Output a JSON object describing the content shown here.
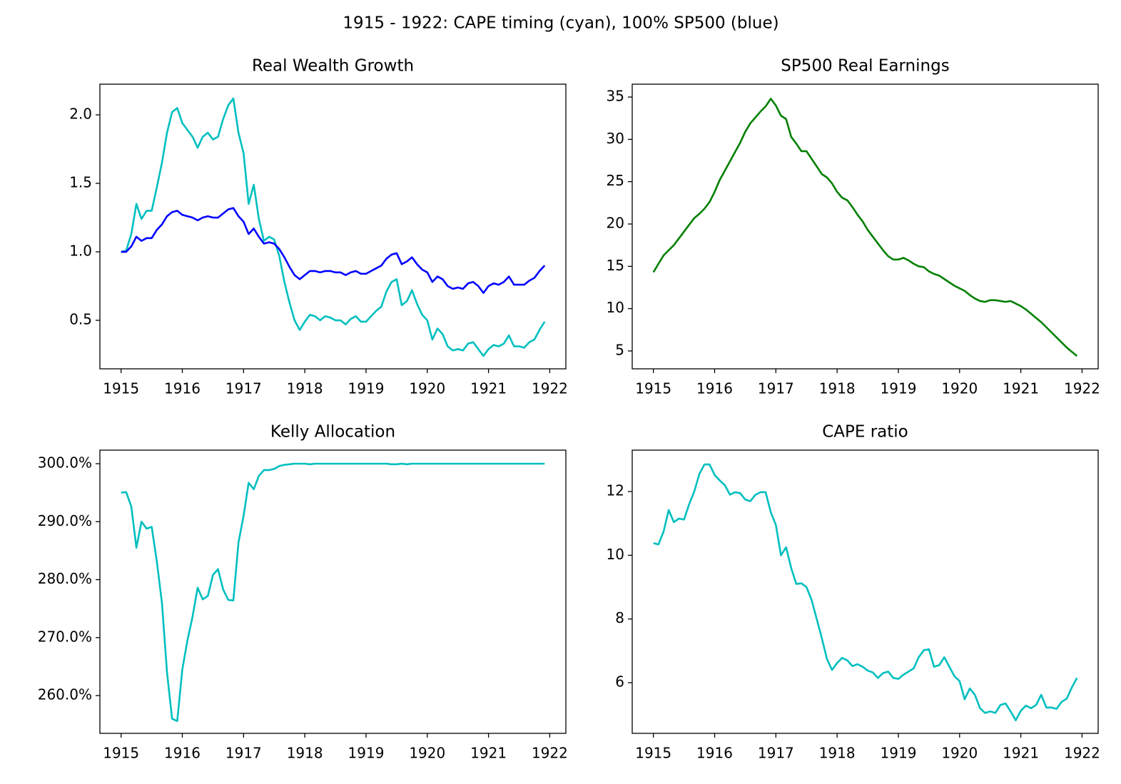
{
  "title": "1915 - 1922: CAPE timing (cyan), 100% SP500 (blue)",
  "chart_data": [
    {
      "type": "line",
      "title": "Real Wealth Growth",
      "x": [
        1915,
        1915.083,
        1915.167,
        1915.25,
        1915.333,
        1915.417,
        1915.5,
        1915.583,
        1915.667,
        1915.75,
        1915.833,
        1915.917,
        1916,
        1916.083,
        1916.167,
        1916.25,
        1916.333,
        1916.417,
        1916.5,
        1916.583,
        1916.667,
        1916.75,
        1916.833,
        1916.917,
        1917,
        1917.083,
        1917.167,
        1917.25,
        1917.333,
        1917.417,
        1917.5,
        1917.583,
        1917.667,
        1917.75,
        1917.833,
        1917.917,
        1918,
        1918.083,
        1918.167,
        1918.25,
        1918.333,
        1918.417,
        1918.5,
        1918.583,
        1918.667,
        1918.75,
        1918.833,
        1918.917,
        1919,
        1919.083,
        1919.167,
        1919.25,
        1919.333,
        1919.417,
        1919.5,
        1919.583,
        1919.667,
        1919.75,
        1919.833,
        1919.917,
        1920,
        1920.083,
        1920.167,
        1920.25,
        1920.333,
        1920.417,
        1920.5,
        1920.583,
        1920.667,
        1920.75,
        1920.833,
        1920.917,
        1921,
        1921.083,
        1921.167,
        1921.25,
        1921.333,
        1921.417,
        1921.5,
        1921.583,
        1921.667,
        1921.75,
        1921.833,
        1921.917
      ],
      "series": [
        {
          "color": "#00bfbf",
          "values": [
            1.0,
            1.01,
            1.13,
            1.35,
            1.24,
            1.3,
            1.3,
            1.47,
            1.65,
            1.87,
            2.02,
            2.05,
            1.94,
            1.89,
            1.84,
            1.76,
            1.84,
            1.87,
            1.82,
            1.84,
            1.97,
            2.07,
            2.12,
            1.87,
            1.72,
            1.35,
            1.49,
            1.24,
            1.08,
            1.11,
            1.09,
            0.97,
            0.78,
            0.63,
            0.5,
            0.43,
            0.49,
            0.54,
            0.53,
            0.5,
            0.53,
            0.52,
            0.5,
            0.5,
            0.47,
            0.51,
            0.53,
            0.49,
            0.49,
            0.53,
            0.57,
            0.6,
            0.71,
            0.78,
            0.8,
            0.61,
            0.64,
            0.72,
            0.62,
            0.54,
            0.5,
            0.36,
            0.44,
            0.4,
            0.31,
            0.28,
            0.29,
            0.28,
            0.33,
            0.34,
            0.29,
            0.24,
            0.29,
            0.32,
            0.31,
            0.33,
            0.39,
            0.31,
            0.31,
            0.3,
            0.34,
            0.36,
            0.43,
            0.49
          ]
        },
        {
          "color": "#0000ff",
          "values": [
            1.0,
            1.0,
            1.04,
            1.11,
            1.08,
            1.1,
            1.1,
            1.16,
            1.2,
            1.26,
            1.29,
            1.3,
            1.27,
            1.26,
            1.25,
            1.23,
            1.25,
            1.26,
            1.25,
            1.25,
            1.28,
            1.31,
            1.32,
            1.26,
            1.22,
            1.13,
            1.17,
            1.11,
            1.06,
            1.07,
            1.06,
            1.02,
            0.96,
            0.89,
            0.83,
            0.8,
            0.83,
            0.86,
            0.86,
            0.85,
            0.86,
            0.86,
            0.85,
            0.85,
            0.83,
            0.85,
            0.86,
            0.84,
            0.84,
            0.86,
            0.88,
            0.9,
            0.95,
            0.98,
            0.99,
            0.91,
            0.93,
            0.96,
            0.91,
            0.87,
            0.85,
            0.78,
            0.82,
            0.8,
            0.75,
            0.73,
            0.74,
            0.73,
            0.77,
            0.78,
            0.75,
            0.7,
            0.75,
            0.77,
            0.76,
            0.78,
            0.82,
            0.76,
            0.76,
            0.76,
            0.79,
            0.81,
            0.86,
            0.9
          ]
        }
      ],
      "xlim": [
        1914.654,
        1922.263
      ],
      "xticks": [
        1915,
        1916,
        1917,
        1918,
        1919,
        1920,
        1921,
        1922
      ],
      "ylim": [
        0.146,
        2.224
      ],
      "yticks": [
        {
          "value": 0.5,
          "label": "0.5"
        },
        {
          "value": 1,
          "label": "1.0"
        },
        {
          "value": 1.5,
          "label": "1.5"
        },
        {
          "value": 2,
          "label": "2.0"
        }
      ]
    },
    {
      "type": "line",
      "title": "SP500 Real Earnings",
      "x": [
        1915,
        1915.083,
        1915.167,
        1915.25,
        1915.333,
        1915.417,
        1915.5,
        1915.583,
        1915.667,
        1915.75,
        1915.833,
        1915.917,
        1916,
        1916.083,
        1916.167,
        1916.25,
        1916.333,
        1916.417,
        1916.5,
        1916.583,
        1916.667,
        1916.75,
        1916.833,
        1916.917,
        1917,
        1917.083,
        1917.167,
        1917.25,
        1917.333,
        1917.417,
        1917.5,
        1917.583,
        1917.667,
        1917.75,
        1917.833,
        1917.917,
        1918,
        1918.083,
        1918.167,
        1918.25,
        1918.333,
        1918.417,
        1918.5,
        1918.583,
        1918.667,
        1918.75,
        1918.833,
        1918.917,
        1919,
        1919.083,
        1919.167,
        1919.25,
        1919.333,
        1919.417,
        1919.5,
        1919.583,
        1919.667,
        1919.75,
        1919.833,
        1919.917,
        1920,
        1920.083,
        1920.167,
        1920.25,
        1920.333,
        1920.417,
        1920.5,
        1920.583,
        1920.667,
        1920.75,
        1920.833,
        1920.917,
        1921,
        1921.083,
        1921.167,
        1921.25,
        1921.333,
        1921.417,
        1921.5,
        1921.583,
        1921.667,
        1921.75,
        1921.833,
        1921.917
      ],
      "series": [
        {
          "color": "#008000",
          "values": [
            14.3,
            15.3,
            16.3,
            16.9,
            17.5,
            18.3,
            19.1,
            19.9,
            20.7,
            21.2,
            21.8,
            22.6,
            23.8,
            25.2,
            26.3,
            27.4,
            28.5,
            29.6,
            30.9,
            31.9,
            32.6,
            33.3,
            33.9,
            34.8,
            34.0,
            32.8,
            32.4,
            30.3,
            29.5,
            28.6,
            28.6,
            27.7,
            26.8,
            25.9,
            25.5,
            24.8,
            23.8,
            23.1,
            22.8,
            22.0,
            21.1,
            20.3,
            19.3,
            18.5,
            17.7,
            16.9,
            16.2,
            15.8,
            15.8,
            16.0,
            15.7,
            15.3,
            15.0,
            14.9,
            14.4,
            14.1,
            13.9,
            13.5,
            13.1,
            12.7,
            12.4,
            12.1,
            11.6,
            11.2,
            10.9,
            10.8,
            11.0,
            11.0,
            10.9,
            10.8,
            10.9,
            10.6,
            10.3,
            9.9,
            9.4,
            8.9,
            8.4,
            7.8,
            7.2,
            6.6,
            6.0,
            5.4,
            4.9,
            4.4
          ]
        }
      ],
      "xlim": [
        1914.654,
        1922.263
      ],
      "xticks": [
        1915,
        1916,
        1917,
        1918,
        1919,
        1920,
        1921,
        1922
      ],
      "ylim": [
        2.89,
        36.52
      ],
      "yticks": [
        5,
        10,
        15,
        20,
        25,
        30,
        35
      ]
    },
    {
      "type": "line",
      "title": "Kelly Allocation",
      "x": [
        1915,
        1915.083,
        1915.167,
        1915.25,
        1915.333,
        1915.417,
        1915.5,
        1915.583,
        1915.667,
        1915.75,
        1915.833,
        1915.917,
        1916,
        1916.083,
        1916.167,
        1916.25,
        1916.333,
        1916.417,
        1916.5,
        1916.583,
        1916.667,
        1916.75,
        1916.833,
        1916.917,
        1917,
        1917.083,
        1917.167,
        1917.25,
        1917.333,
        1917.417,
        1917.5,
        1917.583,
        1917.667,
        1917.75,
        1917.833,
        1917.917,
        1918,
        1918.083,
        1918.167,
        1918.25,
        1918.333,
        1918.417,
        1918.5,
        1918.583,
        1918.667,
        1918.75,
        1918.833,
        1918.917,
        1919,
        1919.083,
        1919.167,
        1919.25,
        1919.333,
        1919.417,
        1919.5,
        1919.583,
        1919.667,
        1919.75,
        1919.833,
        1919.917,
        1920,
        1920.083,
        1920.167,
        1920.25,
        1920.333,
        1920.417,
        1920.5,
        1920.583,
        1920.667,
        1920.75,
        1920.833,
        1920.917,
        1921,
        1921.083,
        1921.167,
        1921.25,
        1921.333,
        1921.417,
        1921.5,
        1921.583,
        1921.667,
        1921.75,
        1921.833,
        1921.917
      ],
      "series": [
        {
          "color": "#00bfbf",
          "values": [
            295.0,
            295.1,
            292.6,
            285.5,
            290.0,
            288.8,
            289.1,
            283.2,
            276.0,
            264.0,
            256.0,
            255.6,
            264.5,
            269.5,
            273.6,
            278.6,
            276.6,
            277.2,
            280.8,
            281.8,
            278.3,
            276.5,
            276.4,
            286.4,
            291.0,
            296.7,
            295.6,
            297.9,
            298.9,
            298.9,
            299.1,
            299.6,
            299.8,
            299.9,
            300.0,
            300.0,
            300.0,
            299.9,
            300.0,
            300.0,
            300.0,
            300.0,
            300.0,
            300.0,
            300.0,
            300.0,
            300.0,
            300.0,
            300.0,
            300.0,
            300.0,
            300.0,
            300.0,
            299.9,
            299.9,
            300.0,
            299.9,
            300.0,
            300.0,
            300.0,
            300.0,
            300.0,
            300.0,
            300.0,
            300.0,
            300.0,
            300.0,
            300.0,
            300.0,
            300.0,
            300.0,
            300.0,
            300.0,
            300.0,
            300.0,
            300.0,
            300.0,
            300.0,
            300.0,
            300.0,
            300.0,
            300.0,
            300.0,
            300.0
          ]
        }
      ],
      "xlim": [
        1914.654,
        1922.263
      ],
      "xticks": [
        1915,
        1916,
        1917,
        1918,
        1919,
        1920,
        1921,
        1922
      ],
      "ylim": [
        253.48,
        302.34
      ],
      "yticks": [
        {
          "value": 260,
          "label": "260.0%"
        },
        {
          "value": 270,
          "label": "270.0%"
        },
        {
          "value": 280,
          "label": "280.0%"
        },
        {
          "value": 290,
          "label": "290.0%"
        },
        {
          "value": 300,
          "label": "300.0%"
        }
      ]
    },
    {
      "type": "line",
      "title": "CAPE ratio",
      "x": [
        1915,
        1915.083,
        1915.167,
        1915.25,
        1915.333,
        1915.417,
        1915.5,
        1915.583,
        1915.667,
        1915.75,
        1915.833,
        1915.917,
        1916,
        1916.083,
        1916.167,
        1916.25,
        1916.333,
        1916.417,
        1916.5,
        1916.583,
        1916.667,
        1916.75,
        1916.833,
        1916.917,
        1917,
        1917.083,
        1917.167,
        1917.25,
        1917.333,
        1917.417,
        1917.5,
        1917.583,
        1917.667,
        1917.75,
        1917.833,
        1917.917,
        1918,
        1918.083,
        1918.167,
        1918.25,
        1918.333,
        1918.417,
        1918.5,
        1918.583,
        1918.667,
        1918.75,
        1918.833,
        1918.917,
        1919,
        1919.083,
        1919.167,
        1919.25,
        1919.333,
        1919.417,
        1919.5,
        1919.583,
        1919.667,
        1919.75,
        1919.833,
        1919.917,
        1920,
        1920.083,
        1920.167,
        1920.25,
        1920.333,
        1920.417,
        1920.5,
        1920.583,
        1920.667,
        1920.75,
        1920.833,
        1920.917,
        1921,
        1921.083,
        1921.167,
        1921.25,
        1921.333,
        1921.417,
        1921.5,
        1921.583,
        1921.667,
        1921.75,
        1921.833,
        1921.917
      ],
      "series": [
        {
          "color": "#00bfbf",
          "values": [
            10.38,
            10.34,
            10.75,
            11.42,
            11.04,
            11.15,
            11.12,
            11.6,
            12.0,
            12.55,
            12.85,
            12.85,
            12.52,
            12.35,
            12.2,
            11.9,
            11.98,
            11.95,
            11.75,
            11.7,
            11.9,
            11.98,
            11.98,
            11.35,
            10.95,
            10.0,
            10.25,
            9.6,
            9.1,
            9.12,
            9.0,
            8.6,
            8.0,
            7.4,
            6.75,
            6.4,
            6.62,
            6.78,
            6.7,
            6.52,
            6.58,
            6.5,
            6.38,
            6.32,
            6.15,
            6.3,
            6.35,
            6.15,
            6.12,
            6.25,
            6.35,
            6.45,
            6.8,
            7.02,
            7.05,
            6.5,
            6.55,
            6.8,
            6.5,
            6.2,
            6.05,
            5.48,
            5.82,
            5.62,
            5.2,
            5.05,
            5.1,
            5.05,
            5.3,
            5.35,
            5.1,
            4.82,
            5.12,
            5.28,
            5.2,
            5.3,
            5.62,
            5.22,
            5.22,
            5.18,
            5.4,
            5.5,
            5.85,
            6.15
          ]
        }
      ],
      "xlim": [
        1914.654,
        1922.263
      ],
      "xticks": [
        1915,
        1916,
        1917,
        1918,
        1919,
        1920,
        1921,
        1922
      ],
      "ylim": [
        4.41,
        13.3
      ],
      "yticks": [
        6,
        8,
        10,
        12
      ]
    }
  ]
}
